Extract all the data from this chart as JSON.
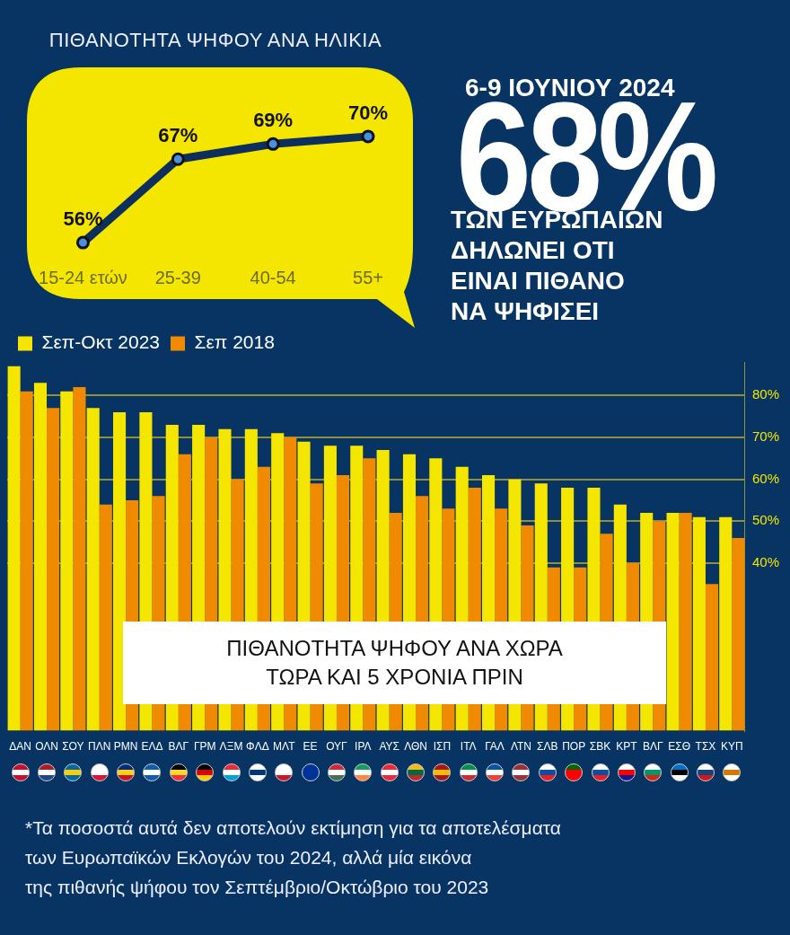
{
  "chart_data": [
    {
      "type": "line",
      "title": "ΠΙΘΑΝΟΤΗΤΑ ΨΗΦΟΥ ΑΝΑ ΗΛΙΚΙΑ",
      "categories": [
        "15-24 ετών",
        "25-39",
        "40-54",
        "55+"
      ],
      "values": [
        56,
        67,
        69,
        70
      ],
      "value_labels": [
        "56%",
        "67%",
        "69%",
        "70%"
      ],
      "color": "#0d2f5e",
      "marker": "circle"
    },
    {
      "type": "other",
      "title": "6-9 ΙΟΥΝΙΟΥ 2024",
      "annotations": [
        "68%",
        "ΤΩΝ ΕΥΡΩΠΑΙΩΝ\nΔΗΛΩΝΕΙ ΟΤΙ\nΕΙΝΑΙ ΠΙΘΑΝΟ\nΝΑ ΨΗΦΙΣΕΙ"
      ]
    },
    {
      "type": "bar",
      "title": "ΠΙΘΑΝΟΤΗΤΑ ΨΗΦΟΥ ΑΝΑ ΧΩΡΑ\nΤΩΡΑ ΚΑΙ 5 ΧΡΟΝΙΑ ΠΡΙΝ",
      "categories": [
        "ΔΑΝ",
        "ΟΛΝ",
        "ΣΟΥ",
        "ΠΛΝ",
        "ΡΜΝ",
        "ΕΛΔ",
        "ΒΛΓ",
        "ΓΡΜ",
        "ΛΞΜ",
        "ΦΛΔ",
        "ΜΛΤ",
        "ΕΕ",
        "ΟΥΓ",
        "ΙΡΛ",
        "ΑΥΣ",
        "ΛΘΝ",
        "ΙΣΠ",
        "ΙΤΛ",
        "ΓΑΛ",
        "ΛΤΝ",
        "ΣΛΒ",
        "ΠΟΡ",
        "ΣΒΚ",
        "ΚΡΤ",
        "ΒΛΓ",
        "ΕΣΘ",
        "ΤΣΧ",
        "ΚΥΠ"
      ],
      "series": [
        {
          "name": "Σεπ-Οκτ 2023",
          "color": "#f5e600",
          "values": [
            87,
            83,
            81,
            77,
            76,
            76,
            73,
            73,
            72,
            72,
            71,
            69,
            68,
            68,
            67,
            66,
            65,
            63,
            61,
            60,
            59,
            58,
            58,
            54,
            52,
            52,
            51,
            51
          ]
        },
        {
          "name": "Σεπ 2018",
          "color": "#f08a00",
          "values": [
            81,
            77,
            82,
            54,
            55,
            56,
            66,
            70,
            60,
            63,
            70,
            59,
            61,
            65,
            52,
            56,
            53,
            58,
            53,
            49,
            39,
            39,
            47,
            40,
            50,
            52,
            35,
            46
          ]
        }
      ],
      "ylim": [
        0,
        88
      ],
      "yticks": [
        {
          "value": 40,
          "label": "40%"
        },
        {
          "value": 50,
          "label": "50%"
        },
        {
          "value": 60,
          "label": "60%"
        },
        {
          "value": 70,
          "label": "70%"
        },
        {
          "value": 80,
          "label": "80%"
        }
      ],
      "grid": "y",
      "legend": "top left",
      "annotations": [
        "*Τα ποσοστά αυτά δεν αποτελούν εκτίμηση για τα αποτελέσματα\nτων Ευρωπαϊκών Εκλογών του 2024, αλλά μία εικόνα\nτης πιθανής ψήφου τον Σεπτέμβριο/Οκτώβριο του 2023"
      ]
    }
  ]
}
